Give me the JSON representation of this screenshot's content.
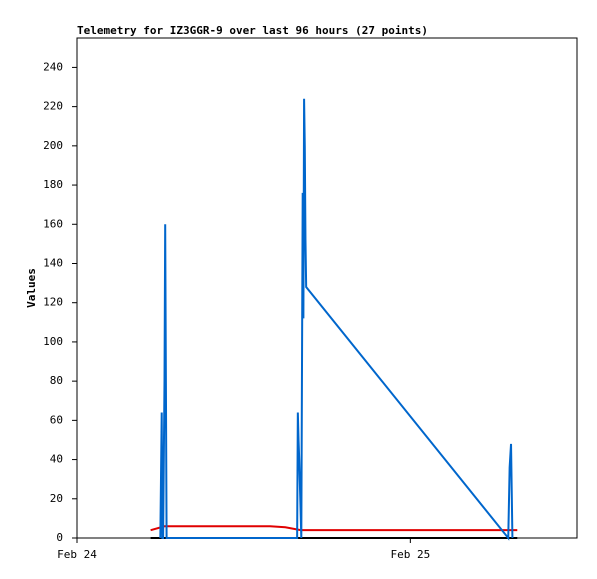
{
  "chart_data": {
    "type": "line",
    "title": "Telemetry for IZ3GGR-9 over last 96 hours (27 points)",
    "y_label": "Values",
    "xlim": [
      0,
      36
    ],
    "xticks": [
      {
        "value": 0,
        "label": "Feb 24"
      },
      {
        "value": 24,
        "label": "Feb 25"
      }
    ],
    "ylim": [
      0,
      255
    ],
    "yticks": [
      0,
      20,
      40,
      60,
      80,
      100,
      120,
      140,
      160,
      180,
      200,
      220,
      240
    ],
    "series": [
      {
        "color": "#000000",
        "x": [
          5.3,
          31.7
        ],
        "values": [
          0,
          0
        ]
      },
      {
        "color": "#e00000",
        "x": [
          5.3,
          6.3,
          13.9,
          15.0,
          16.1,
          31.7
        ],
        "values": [
          4,
          6,
          6,
          5.5,
          4,
          4
        ]
      },
      {
        "color": "#0066cc",
        "x": [
          6.0,
          6.05,
          6.1,
          6.15,
          6.2,
          6.3,
          6.35,
          6.4,
          6.45,
          15.85,
          15.9,
          15.95,
          16.0,
          16.1,
          16.15,
          16.2,
          16.25,
          16.3,
          16.35,
          16.4,
          16.45,
          16.5,
          31.05,
          31.15,
          31.25,
          31.3,
          31.35
        ],
        "values": [
          0,
          32,
          64,
          0,
          0,
          80,
          160,
          80,
          0,
          0,
          64,
          50,
          40,
          14,
          0,
          88,
          176,
          112,
          224,
          200,
          152,
          128,
          0,
          36,
          48,
          24,
          0
        ]
      }
    ]
  }
}
